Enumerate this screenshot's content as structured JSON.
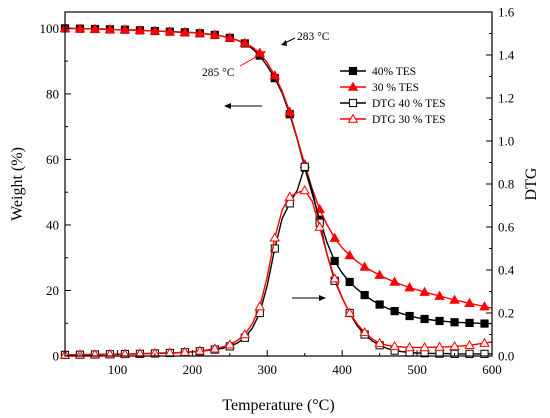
{
  "chart_data": {
    "type": "line",
    "xlabel": "Temperature (°C)",
    "ylabel": "Weight  (%)",
    "y2label": "DTG",
    "xlim": [
      30,
      600
    ],
    "ylim": [
      0,
      105
    ],
    "y2lim": [
      0,
      1.6
    ],
    "xticks": [
      "100",
      "200",
      "300",
      "400",
      "500",
      "600"
    ],
    "xtick_values": [
      100,
      200,
      300,
      400,
      500,
      600
    ],
    "yticks": [
      "0",
      "20",
      "40",
      "60",
      "80",
      "100"
    ],
    "ytick_values": [
      0,
      20,
      40,
      60,
      80,
      100
    ],
    "y2ticks": [
      "0.0",
      "0.2",
      "0.4",
      "0.6",
      "0.8",
      "1.0",
      "1.2",
      "1.4",
      "1.6"
    ],
    "y2tick_values": [
      0,
      0.2,
      0.4,
      0.6,
      0.8,
      1.0,
      1.2,
      1.4,
      1.6
    ],
    "grid": false,
    "legend_position": "top-right",
    "series": [
      {
        "name": "40% TES",
        "axis": "left",
        "color": "#000000",
        "marker": "square-filled",
        "x": [
          30,
          40,
          50,
          60,
          70,
          80,
          90,
          100,
          110,
          120,
          130,
          140,
          150,
          160,
          170,
          180,
          190,
          200,
          210,
          220,
          230,
          240,
          250,
          260,
          270,
          280,
          290,
          300,
          310,
          320,
          330,
          340,
          350,
          360,
          370,
          380,
          390,
          400,
          410,
          420,
          430,
          440,
          450,
          460,
          470,
          480,
          490,
          500,
          510,
          520,
          530,
          540,
          550,
          560,
          570,
          580,
          590,
          600
        ],
        "y": [
          100,
          100,
          99.9,
          99.9,
          99.8,
          99.8,
          99.7,
          99.6,
          99.6,
          99.5,
          99.4,
          99.3,
          99.2,
          99.1,
          99.0,
          98.9,
          98.8,
          98.7,
          98.5,
          98.3,
          98.0,
          97.6,
          97.1,
          96.4,
          95.4,
          93.8,
          91.7,
          88.5,
          84.8,
          80.2,
          73.8,
          66.2,
          57.5,
          49.5,
          41.6,
          34.5,
          29.0,
          25.3,
          22.6,
          20.4,
          18.6,
          17.0,
          15.7,
          14.6,
          13.7,
          12.9,
          12.2,
          11.7,
          11.3,
          11.0,
          10.7,
          10.5,
          10.3,
          10.2,
          10.1,
          10.0,
          9.9,
          9.9
        ],
        "marker_every": 2
      },
      {
        "name": "30 % TES",
        "axis": "left",
        "color": "#ff0000",
        "marker": "triangle-filled",
        "x": [
          30,
          40,
          50,
          60,
          70,
          80,
          90,
          100,
          110,
          120,
          130,
          140,
          150,
          160,
          170,
          180,
          190,
          200,
          210,
          220,
          230,
          240,
          250,
          260,
          270,
          280,
          290,
          300,
          310,
          320,
          330,
          340,
          350,
          360,
          370,
          380,
          390,
          400,
          410,
          420,
          430,
          440,
          450,
          460,
          470,
          480,
          490,
          500,
          510,
          520,
          530,
          540,
          550,
          560,
          570,
          580,
          590,
          600
        ],
        "y": [
          100,
          100,
          99.9,
          99.9,
          99.8,
          99.8,
          99.7,
          99.6,
          99.6,
          99.5,
          99.4,
          99.3,
          99.2,
          99.1,
          99.0,
          98.9,
          98.8,
          98.7,
          98.5,
          98.3,
          98.0,
          97.6,
          97.1,
          96.4,
          95.5,
          94.3,
          92.5,
          89.5,
          85.6,
          80.8,
          74.5,
          66.5,
          58.5,
          51.0,
          44.8,
          40.0,
          36.0,
          33.0,
          30.7,
          28.8,
          27.2,
          25.9,
          24.7,
          23.6,
          22.6,
          21.7,
          20.9,
          20.2,
          19.5,
          18.9,
          18.3,
          17.7,
          17.1,
          16.6,
          16.1,
          15.6,
          15.1,
          14.6
        ],
        "marker_every": 2
      },
      {
        "name": "DTG 40 % TES",
        "axis": "right",
        "color": "#000000",
        "marker": "square-open",
        "x": [
          30,
          40,
          50,
          60,
          70,
          80,
          90,
          100,
          110,
          120,
          130,
          140,
          150,
          160,
          170,
          180,
          190,
          200,
          210,
          220,
          230,
          240,
          250,
          260,
          270,
          280,
          290,
          300,
          310,
          320,
          330,
          340,
          350,
          360,
          370,
          380,
          390,
          400,
          410,
          420,
          430,
          440,
          450,
          460,
          470,
          480,
          490,
          500,
          510,
          520,
          530,
          540,
          550,
          560,
          570,
          580,
          590,
          600
        ],
        "y": [
          0.005,
          0.005,
          0.006,
          0.006,
          0.007,
          0.007,
          0.008,
          0.008,
          0.009,
          0.009,
          0.01,
          0.011,
          0.012,
          0.013,
          0.014,
          0.015,
          0.017,
          0.019,
          0.022,
          0.026,
          0.03,
          0.036,
          0.045,
          0.06,
          0.085,
          0.13,
          0.2,
          0.33,
          0.5,
          0.64,
          0.71,
          0.77,
          0.88,
          0.77,
          0.62,
          0.47,
          0.35,
          0.27,
          0.2,
          0.14,
          0.1,
          0.07,
          0.05,
          0.035,
          0.025,
          0.02,
          0.016,
          0.014,
          0.013,
          0.012,
          0.011,
          0.011,
          0.01,
          0.01,
          0.01,
          0.01,
          0.01,
          0.01
        ],
        "marker_every": 2
      },
      {
        "name": "DTG 30 % TES",
        "axis": "right",
        "color": "#ff0000",
        "marker": "triangle-open",
        "x": [
          30,
          40,
          50,
          60,
          70,
          80,
          90,
          100,
          110,
          120,
          130,
          140,
          150,
          160,
          170,
          180,
          190,
          200,
          210,
          220,
          230,
          240,
          250,
          260,
          270,
          280,
          290,
          300,
          310,
          320,
          330,
          340,
          350,
          360,
          370,
          380,
          390,
          400,
          410,
          420,
          430,
          440,
          450,
          460,
          470,
          480,
          490,
          500,
          510,
          520,
          530,
          540,
          550,
          560,
          570,
          580,
          590,
          600
        ],
        "y": [
          0.005,
          0.006,
          0.006,
          0.007,
          0.007,
          0.008,
          0.008,
          0.009,
          0.009,
          0.01,
          0.011,
          0.012,
          0.013,
          0.014,
          0.015,
          0.016,
          0.018,
          0.02,
          0.024,
          0.028,
          0.034,
          0.042,
          0.053,
          0.072,
          0.1,
          0.15,
          0.23,
          0.37,
          0.55,
          0.68,
          0.74,
          0.76,
          0.77,
          0.72,
          0.6,
          0.47,
          0.36,
          0.27,
          0.2,
          0.15,
          0.11,
          0.08,
          0.06,
          0.05,
          0.045,
          0.042,
          0.04,
          0.04,
          0.04,
          0.041,
          0.042,
          0.043,
          0.045,
          0.047,
          0.05,
          0.055,
          0.06,
          0.065
        ],
        "marker_every": 2
      }
    ],
    "annotations": [
      {
        "text": "283 °C",
        "x": 283,
        "y": 95
      },
      {
        "text": "285 °C",
        "x": 285,
        "y": 94
      }
    ]
  }
}
